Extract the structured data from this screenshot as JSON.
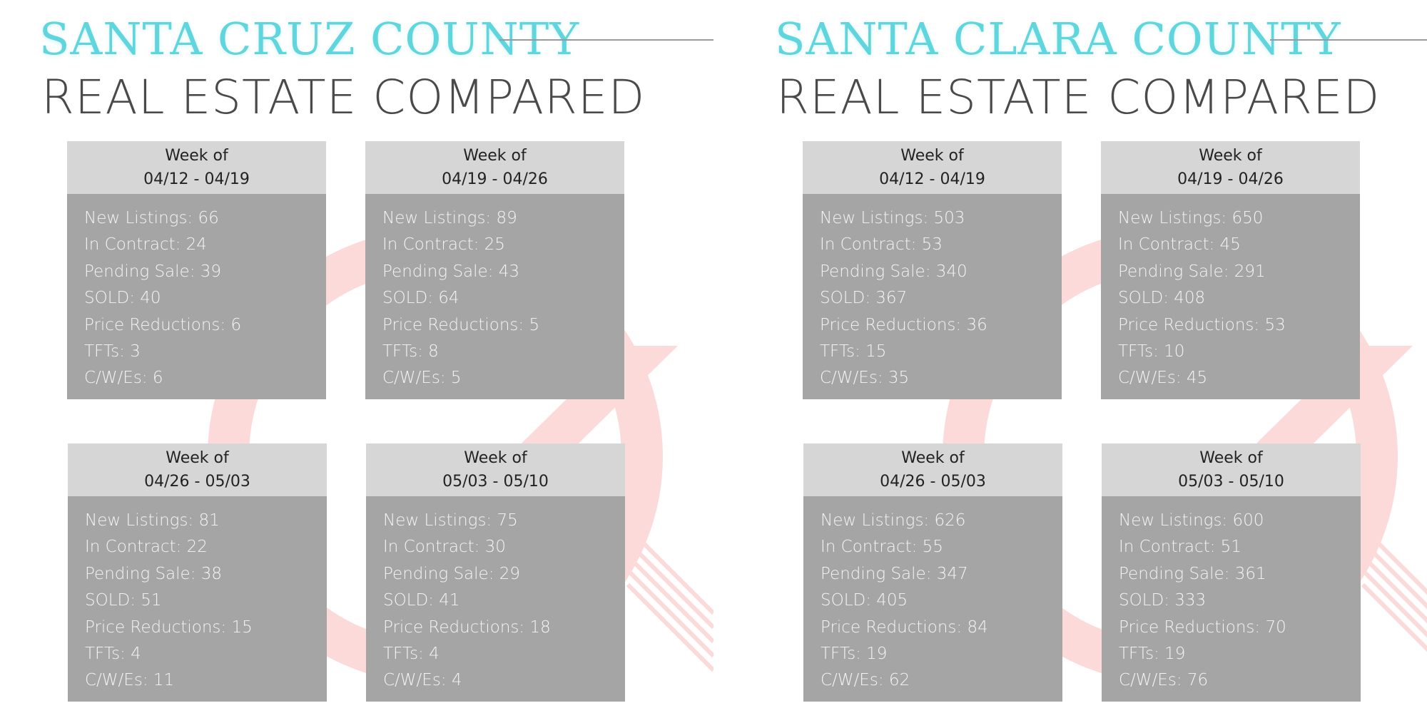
{
  "colors": {
    "accent": "#5fd6de",
    "card_header": "#d6d6d6",
    "card_body": "#a5a5a5",
    "decor": "#fbd3d3"
  },
  "panels": [
    {
      "county": "SANTA CRUZ COUNTY",
      "subtitle": "REAL ESTATE COMPARED",
      "cards": [
        {
          "week_label": "Week of",
          "dates": "04/12 - 04/19",
          "stats": [
            "New Listings: 66",
            "In Contract: 24",
            "Pending Sale: 39",
            "SOLD: 40",
            "Price Reductions: 6",
            "TFTs: 3",
            "C/W/Es: 6"
          ]
        },
        {
          "week_label": "Week of",
          "dates": "04/19 - 04/26",
          "stats": [
            "New Listings: 89",
            "In Contract: 25",
            "Pending Sale: 43",
            "SOLD: 64",
            "Price Reductions: 5",
            "TFTs: 8",
            "C/W/Es: 5"
          ]
        },
        {
          "week_label": "Week of",
          "dates": "04/26 - 05/03",
          "stats": [
            "New Listings: 81",
            "In Contract: 22",
            "Pending Sale: 38",
            "SOLD: 51",
            "Price Reductions: 15",
            "TFTs: 4",
            "C/W/Es: 11"
          ]
        },
        {
          "week_label": "Week of",
          "dates": "05/03 - 05/10",
          "stats": [
            "New Listings: 75",
            "In Contract: 30",
            "Pending Sale: 29",
            "SOLD: 41",
            "Price Reductions: 18",
            "TFTs: 4",
            "C/W/Es: 4"
          ]
        }
      ]
    },
    {
      "county": "SANTA CLARA COUNTY",
      "subtitle": "REAL ESTATE COMPARED",
      "cards": [
        {
          "week_label": "Week of",
          "dates": "04/12 - 04/19",
          "stats": [
            "New Listings: 503",
            "In Contract: 53",
            "Pending Sale: 340",
            "SOLD: 367",
            "Price Reductions: 36",
            "TFTs: 15",
            "C/W/Es: 35"
          ]
        },
        {
          "week_label": "Week of",
          "dates": "04/19 - 04/26",
          "stats": [
            "New Listings: 650",
            "In Contract: 45",
            "Pending Sale: 291",
            "SOLD: 408",
            "Price Reductions: 53",
            "TFTs: 10",
            "C/W/Es: 45"
          ]
        },
        {
          "week_label": "Week of",
          "dates": "04/26 - 05/03",
          "stats": [
            "New Listings: 626",
            "In Contract: 55",
            "Pending Sale: 347",
            "SOLD: 405",
            "Price Reductions: 84",
            "TFTs: 19",
            "C/W/Es: 62"
          ]
        },
        {
          "week_label": "Week of",
          "dates": "05/03 - 05/10",
          "stats": [
            "New Listings: 600",
            "In Contract: 51",
            "Pending Sale: 361",
            "SOLD: 333",
            "Price Reductions: 70",
            "TFTs: 19",
            "C/W/Es: 76"
          ]
        }
      ]
    }
  ]
}
